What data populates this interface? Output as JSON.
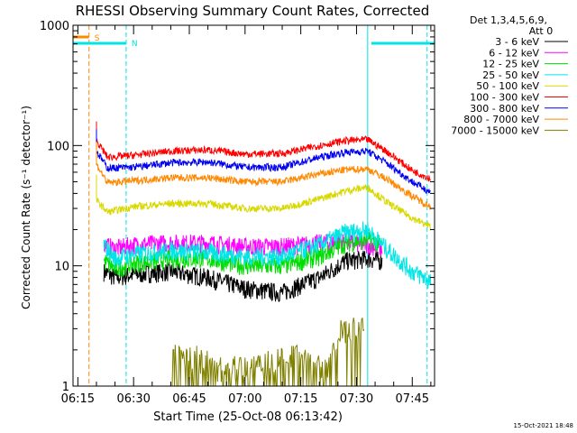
{
  "chart_data": {
    "type": "line",
    "title": "RHESSI Observing Summary Count Rates, Corrected",
    "xlabel": "Start Time (25-Oct-08 06:13:42)",
    "ylabel": "Corrected Count Rate (s⁻¹ detector⁻¹)",
    "yscale": "log",
    "ylim": [
      1,
      1000
    ],
    "xlim": [
      "06:13:42",
      "07:51:00"
    ],
    "x_ticks": [
      "06:15",
      "06:30",
      "06:45",
      "07:00",
      "07:15",
      "07:30",
      "07:45"
    ],
    "y_ticks": [
      "1",
      "10",
      "100",
      "1000"
    ],
    "grid": false,
    "legend_position": "top-right",
    "legend_header": [
      "Det 1,3,4,5,6,9,",
      "Att 0"
    ],
    "series": [
      {
        "name": "3 - 6 keV",
        "color": "#000000",
        "x": [
          "06:22",
          "06:25",
          "06:30",
          "06:40",
          "06:50",
          "07:00",
          "07:10",
          "07:20",
          "07:27",
          "07:33",
          "07:37"
        ],
        "values": [
          9,
          8,
          8.5,
          9,
          8,
          6.5,
          6,
          8,
          11,
          11.5,
          11
        ]
      },
      {
        "name": "6 - 12 keV",
        "color": "#ff00ff",
        "x": [
          "06:22",
          "06:25",
          "06:30",
          "06:40",
          "06:50",
          "07:00",
          "07:10",
          "07:20",
          "07:27",
          "07:33",
          "07:37"
        ],
        "values": [
          15,
          14,
          15,
          15.5,
          15.5,
          14.5,
          14.5,
          15.5,
          16,
          15,
          14
        ]
      },
      {
        "name": "12 - 25 keV",
        "color": "#00dd00",
        "x": [
          "06:22",
          "06:25",
          "06:30",
          "06:40",
          "06:50",
          "07:00",
          "07:10",
          "07:20",
          "07:27",
          "07:33",
          "07:37"
        ],
        "values": [
          11,
          9.5,
          10.5,
          11.5,
          11.5,
          10,
          10,
          12,
          15.5,
          16.5,
          15
        ]
      },
      {
        "name": "25 - 50 keV",
        "color": "#00e5e5",
        "x": [
          "06:22",
          "06:25",
          "06:30",
          "06:40",
          "06:50",
          "07:00",
          "07:10",
          "07:20",
          "07:27",
          "07:33",
          "07:38",
          "07:45",
          "07:50"
        ],
        "values": [
          15,
          11.5,
          12.5,
          13.5,
          13,
          12,
          12,
          15,
          19,
          20,
          14,
          9,
          7.5
        ]
      },
      {
        "name": "50 - 100 keV",
        "color": "#d8d800",
        "x": [
          "06:20",
          "06:23",
          "06:30",
          "06:40",
          "06:50",
          "07:00",
          "07:10",
          "07:20",
          "07:27",
          "07:33",
          "07:38",
          "07:45",
          "07:50"
        ],
        "values": [
          35,
          28,
          31,
          33,
          33,
          30,
          30,
          36,
          42,
          45,
          34,
          25,
          21
        ]
      },
      {
        "name": "100 - 300 keV",
        "color": "#ff0000",
        "x": [
          "06:20",
          "06:23",
          "06:30",
          "06:40",
          "06:50",
          "07:00",
          "07:10",
          "07:20",
          "07:27",
          "07:33",
          "07:38",
          "07:45",
          "07:50"
        ],
        "values": [
          110,
          80,
          83,
          90,
          92,
          85,
          86,
          100,
          110,
          112,
          90,
          62,
          53
        ]
      },
      {
        "name": "300 - 800 keV",
        "color": "#0000ee",
        "x": [
          "06:20",
          "06:23",
          "06:30",
          "06:40",
          "06:50",
          "07:00",
          "07:10",
          "07:20",
          "07:27",
          "07:33",
          "07:38",
          "07:45",
          "07:50"
        ],
        "values": [
          90,
          65,
          66,
          72,
          73,
          66,
          66,
          80,
          88,
          90,
          72,
          50,
          41
        ]
      },
      {
        "name": "800 - 7000 keV",
        "color": "#ff8800",
        "x": [
          "06:20",
          "06:23",
          "06:30",
          "06:40",
          "06:50",
          "07:00",
          "07:10",
          "07:20",
          "07:27",
          "07:33",
          "07:38",
          "07:45",
          "07:50"
        ],
        "values": [
          70,
          49,
          51,
          54,
          54,
          50,
          50,
          58,
          63,
          64,
          53,
          38,
          31
        ]
      },
      {
        "name": "7000 - 15000 keV",
        "color": "#808000",
        "x": [
          "06:40",
          "06:46",
          "06:53",
          "07:15",
          "07:22",
          "07:26",
          "07:32"
        ],
        "values": [
          1.8,
          1.8,
          1.4,
          1.8,
          1.5,
          3.0,
          3.0
        ]
      }
    ],
    "flag_bars": [
      {
        "label": "S",
        "color": "#ff8800",
        "x": [
          "06:13:42",
          "06:18"
        ]
      },
      {
        "label": "N",
        "color": "#00e5e5",
        "x": [
          "06:13:42",
          "06:28"
        ]
      },
      {
        "label": "",
        "color": "#00e5e5",
        "x": [
          "07:34",
          "07:51"
        ]
      }
    ],
    "vertical_markers": [
      {
        "x": "06:18",
        "color": "#ff8800",
        "style": "dashed"
      },
      {
        "x": "06:28",
        "color": "#00e5e5",
        "style": "dashed"
      },
      {
        "x": "07:33",
        "color": "#00e5e5",
        "style": "solid"
      },
      {
        "x": "07:49",
        "color": "#00e5e5",
        "style": "dashed"
      }
    ]
  },
  "footer_timestamp": "15-Oct-2021 18:48"
}
